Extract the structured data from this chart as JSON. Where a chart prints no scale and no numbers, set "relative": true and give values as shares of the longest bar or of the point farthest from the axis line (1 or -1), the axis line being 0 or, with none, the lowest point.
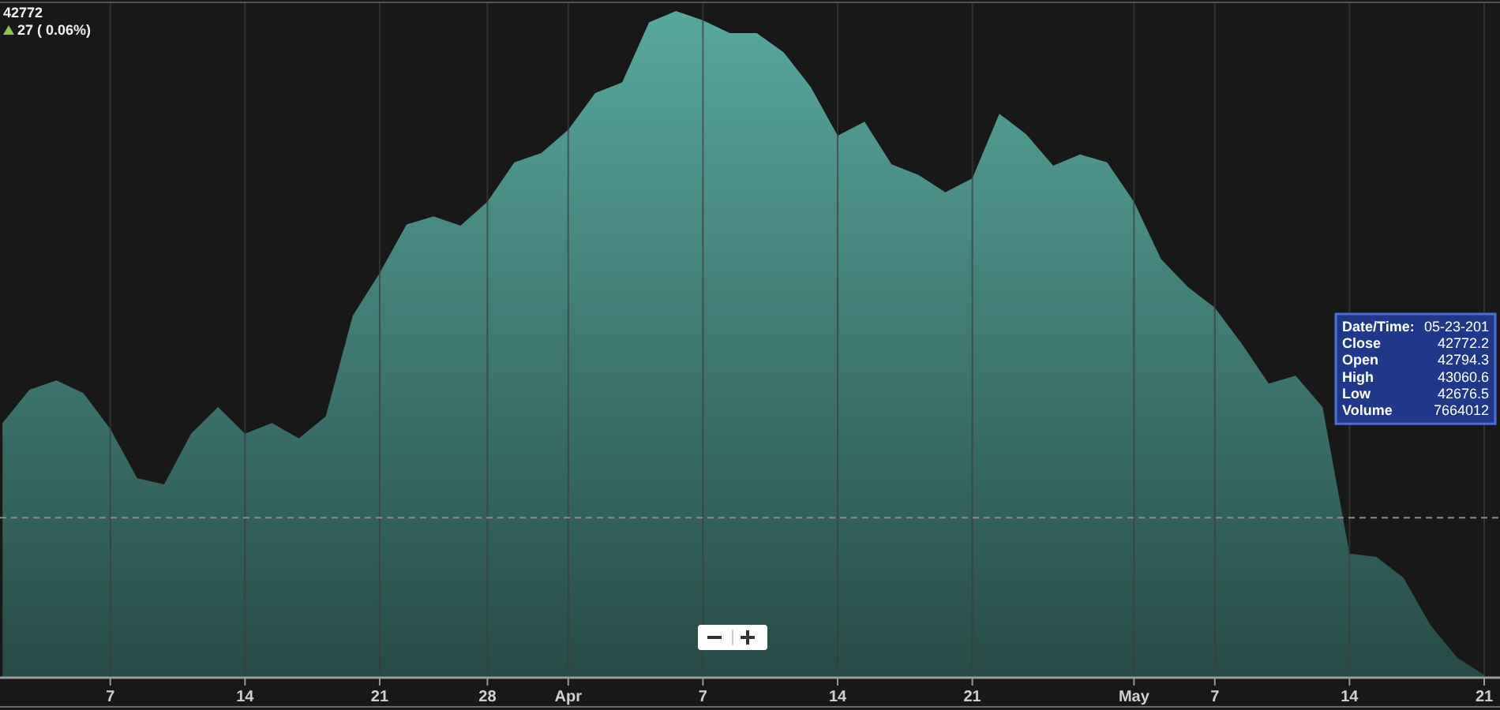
{
  "chart_data": {
    "type": "area",
    "title": "42772",
    "subtitle": "27 ( 0.06%)",
    "relative": true,
    "categories": [
      null,
      null,
      null,
      null,
      "7",
      null,
      null,
      null,
      null,
      "14",
      null,
      null,
      null,
      null,
      "21",
      null,
      null,
      null,
      "28",
      null,
      null,
      "Apr",
      null,
      null,
      null,
      null,
      "7",
      null,
      null,
      null,
      null,
      "14",
      null,
      null,
      null,
      null,
      "21",
      null,
      null,
      null,
      null,
      null,
      "May",
      null,
      null,
      "7",
      null,
      null,
      null,
      null,
      "14",
      null,
      null,
      null,
      null,
      "21"
    ],
    "values": [
      0.382,
      0.432,
      0.446,
      0.427,
      0.373,
      0.299,
      0.29,
      0.366,
      0.406,
      0.366,
      0.382,
      0.359,
      0.392,
      0.543,
      0.607,
      0.68,
      0.692,
      0.678,
      0.714,
      0.773,
      0.787,
      0.822,
      0.877,
      0.893,
      0.983,
      1,
      0.986,
      0.967,
      0.967,
      0.938,
      0.886,
      0.813,
      0.834,
      0.77,
      0.754,
      0.728,
      0.749,
      0.846,
      0.815,
      0.768,
      0.785,
      0.773,
      0.714,
      0.628,
      0.586,
      0.555,
      0.501,
      0.441,
      0.453,
      0.406,
      0.186,
      0.181,
      0.15,
      0.079,
      0.03,
      0.004
    ],
    "color": "#58a89e",
    "grid": "x",
    "ref_lines": [
      {
        "axis": "y",
        "value": 0.24,
        "line_style": "dashed",
        "color": "#8c8c8c"
      }
    ],
    "annotations": [
      "Date/Time:\t05-23-201",
      "Close\t42772.2",
      "Open\t42794.3",
      "High\t43060.6",
      "Low\t42676.5",
      "Volume\t7664012"
    ]
  }
}
